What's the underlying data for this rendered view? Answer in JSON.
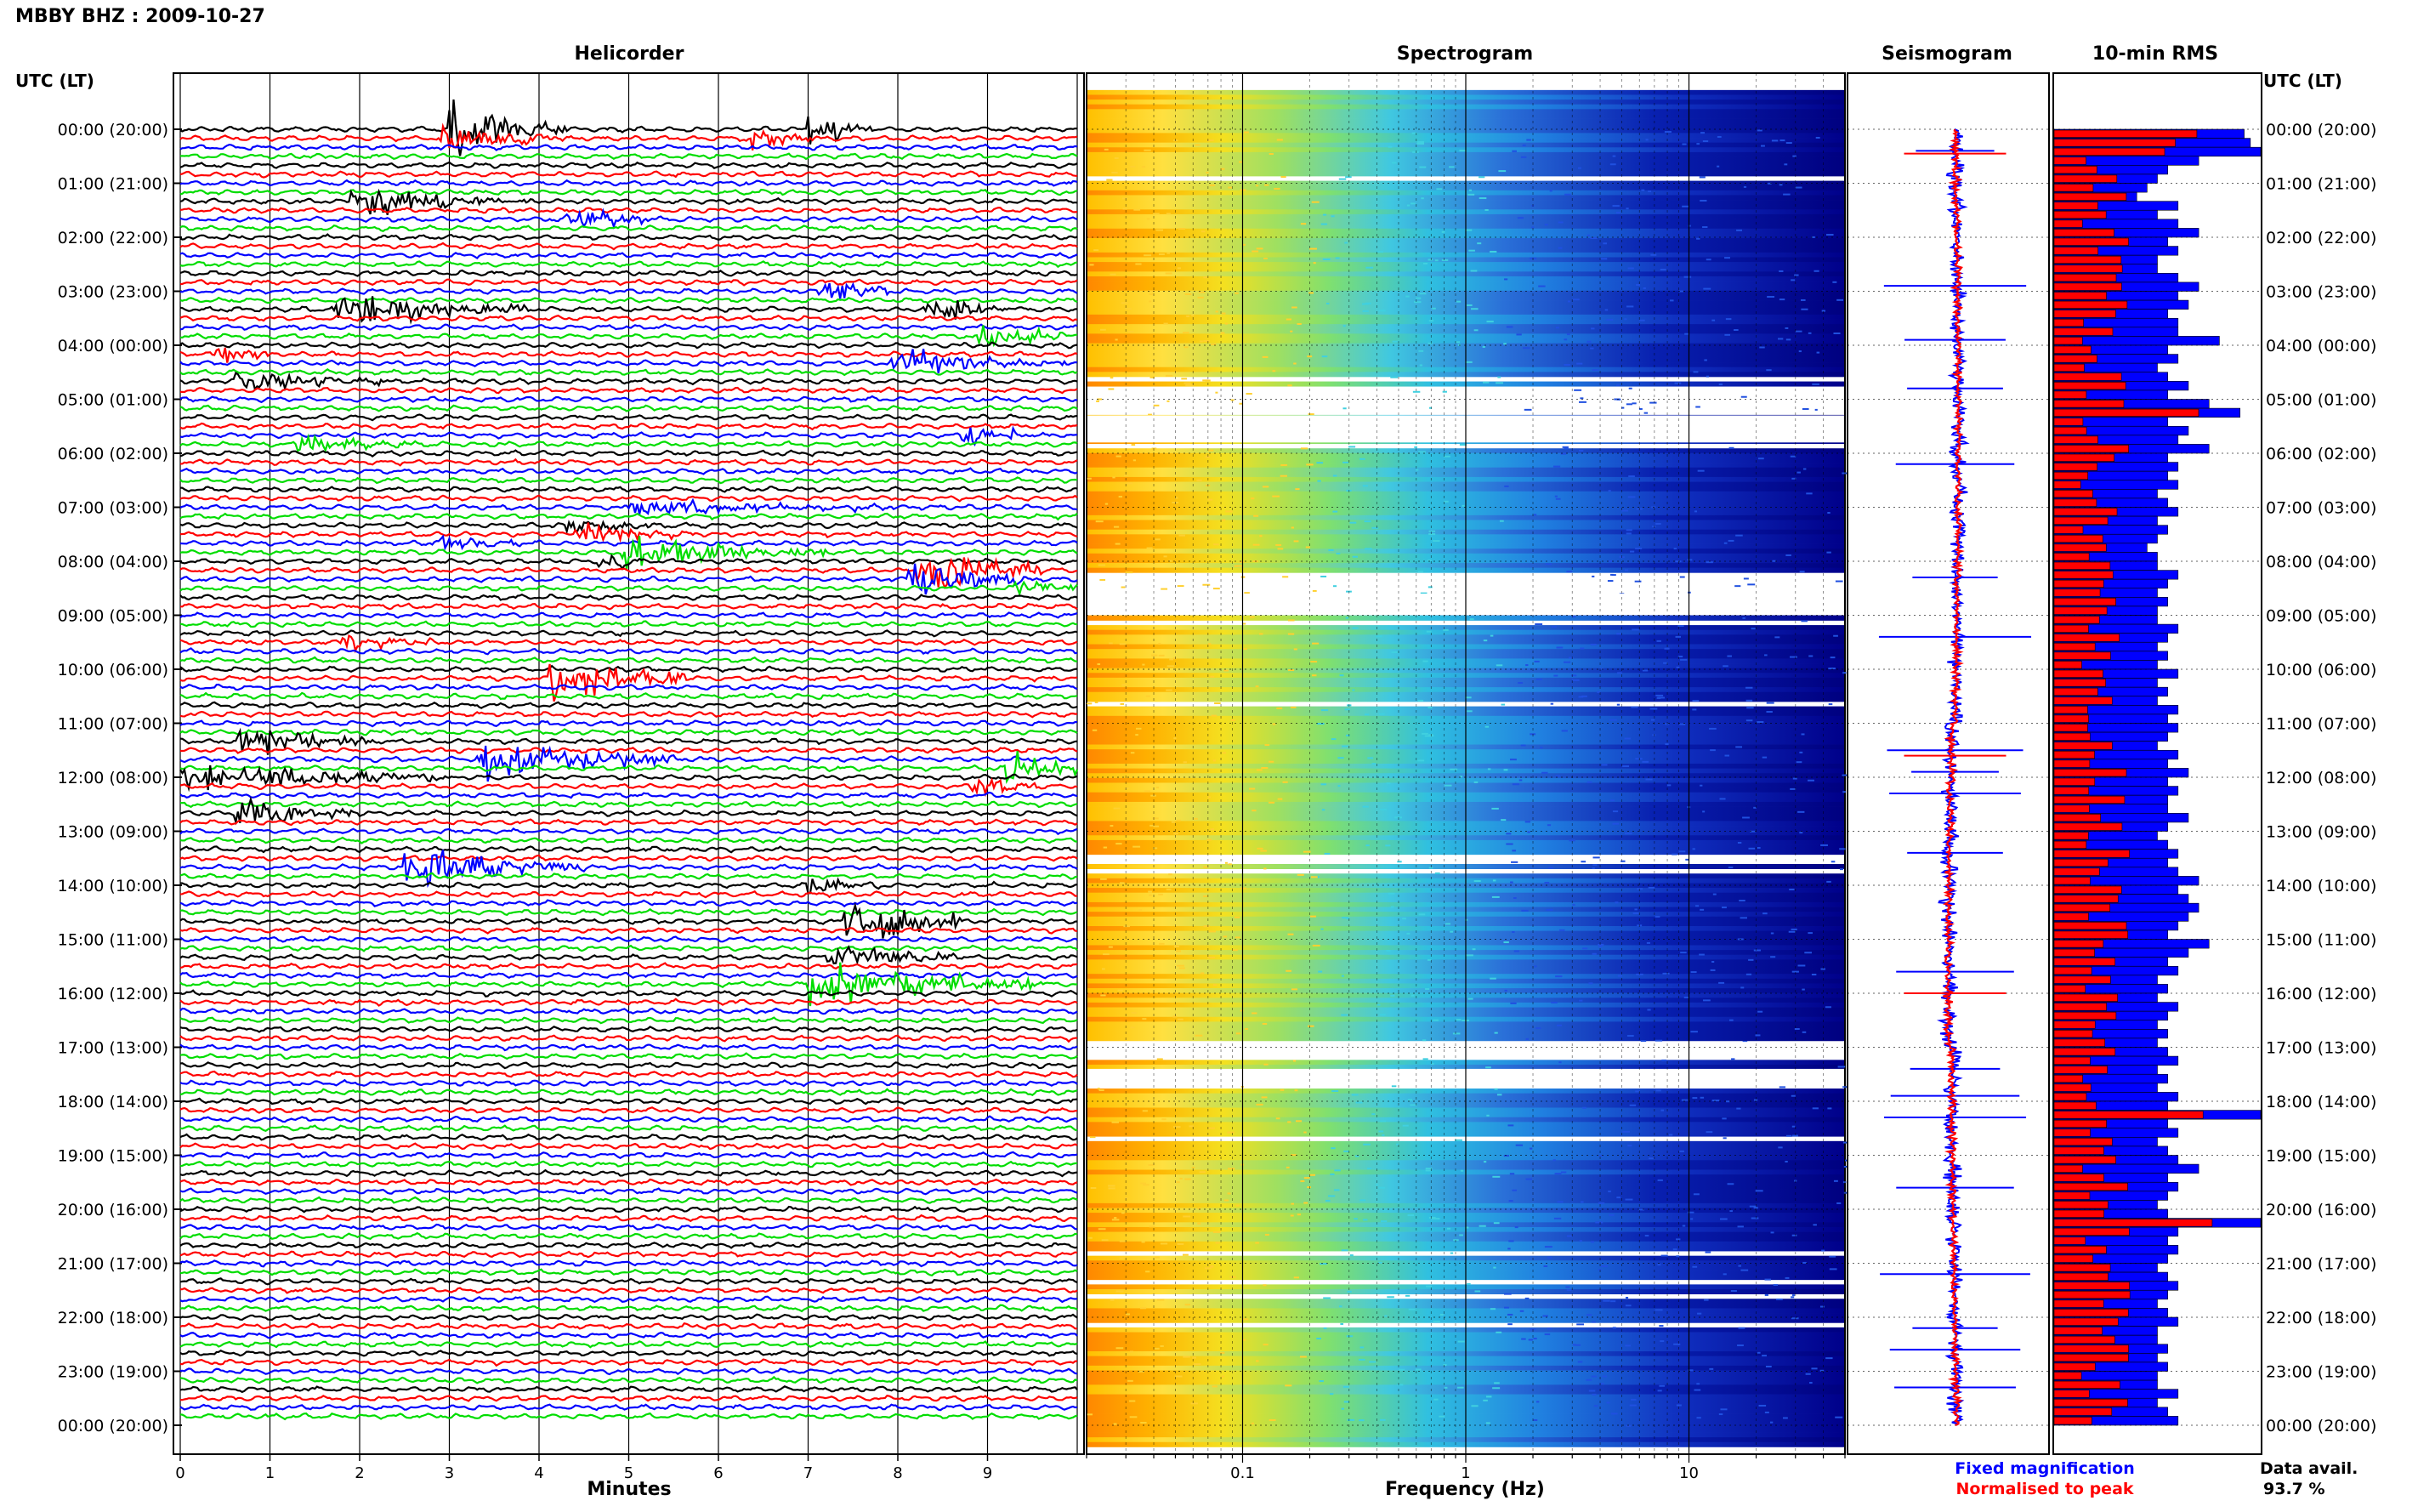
{
  "header": {
    "title": "MBBY BHZ : 2009-10-27"
  },
  "panels": {
    "helicorder": "Helicorder",
    "spectrogram": "Spectrogram",
    "seismogram": "Seismogram",
    "rms": "10-min RMS"
  },
  "axis_labels": {
    "utc_left": "UTC (LT)",
    "utc_right": "UTC (LT)",
    "minutes": "Minutes",
    "frequency": "Frequency (Hz)"
  },
  "legend": {
    "fixed": "Fixed magnification",
    "normalised": "Normalised to peak",
    "fixed_color": "#0000ff",
    "normalised_color": "#ff0000"
  },
  "availability": {
    "label": "Data avail.",
    "value": "93.7 %"
  },
  "colors": {
    "black": "#000000",
    "red": "#ff0000",
    "blue": "#0000ff",
    "green": "#00dd00"
  },
  "chart_data": [
    {
      "type": "line",
      "title": "Helicorder",
      "xlabel": "Minutes",
      "ylabel": "UTC (LT)",
      "xlim": [
        0,
        10
      ],
      "x_ticks": [
        "0",
        "1",
        "2",
        "3",
        "4",
        "5",
        "6",
        "7",
        "8",
        "9"
      ],
      "rows_per_hour": 6,
      "trace_colors": [
        "black",
        "red",
        "blue",
        "green"
      ],
      "time_labels": [
        "00:00 (20:00)",
        "01:00 (21:00)",
        "02:00 (22:00)",
        "03:00 (23:00)",
        "04:00 (00:00)",
        "05:00 (01:00)",
        "06:00 (02:00)",
        "07:00 (03:00)",
        "08:00 (04:00)",
        "09:00 (05:00)",
        "10:00 (06:00)",
        "11:00 (07:00)",
        "12:00 (08:00)",
        "13:00 (09:00)",
        "14:00 (10:00)",
        "15:00 (11:00)",
        "16:00 (12:00)",
        "17:00 (13:00)",
        "18:00 (14:00)",
        "19:00 (15:00)",
        "20:00 (16:00)",
        "21:00 (17:00)",
        "22:00 (18:00)",
        "23:00 (19:00)",
        "00:00 (20:00)"
      ],
      "events": [
        {
          "row": 0,
          "start_min": 3.0,
          "dur_min": 1.3,
          "amp": 3.5
        },
        {
          "row": 0,
          "start_min": 7.0,
          "dur_min": 0.7,
          "amp": 2.5
        },
        {
          "row": 1,
          "start_min": 6.3,
          "dur_min": 0.8,
          "amp": 1.5
        },
        {
          "row": 1,
          "start_min": 2.9,
          "dur_min": 1.5,
          "amp": 1.8
        },
        {
          "row": 8,
          "start_min": 1.9,
          "dur_min": 2.0,
          "amp": 1.8
        },
        {
          "row": 10,
          "start_min": 4.3,
          "dur_min": 1.0,
          "amp": 1.2
        },
        {
          "row": 18,
          "start_min": 7.1,
          "dur_min": 0.8,
          "amp": 1.5
        },
        {
          "row": 20,
          "start_min": 1.7,
          "dur_min": 2.2,
          "amp": 1.8
        },
        {
          "row": 20,
          "start_min": 8.3,
          "dur_min": 1.0,
          "amp": 1.5
        },
        {
          "row": 23,
          "start_min": 8.9,
          "dur_min": 1.0,
          "amp": 1.8
        },
        {
          "row": 25,
          "start_min": 0.4,
          "dur_min": 0.6,
          "amp": 1.4
        },
        {
          "row": 26,
          "start_min": 7.9,
          "dur_min": 2.0,
          "amp": 1.5
        },
        {
          "row": 28,
          "start_min": 0.6,
          "dur_min": 1.8,
          "amp": 1.2
        },
        {
          "row": 34,
          "start_min": 8.7,
          "dur_min": 1.0,
          "amp": 1.2
        },
        {
          "row": 35,
          "start_min": 1.3,
          "dur_min": 1.5,
          "amp": 1.0
        },
        {
          "row": 42,
          "start_min": 5.0,
          "dur_min": 3.0,
          "amp": 1.0
        },
        {
          "row": 44,
          "start_min": 4.3,
          "dur_min": 1.2,
          "amp": 1.0
        },
        {
          "row": 45,
          "start_min": 4.4,
          "dur_min": 1.2,
          "amp": 1.4
        },
        {
          "row": 46,
          "start_min": 2.8,
          "dur_min": 1.0,
          "amp": 1.0
        },
        {
          "row": 47,
          "start_min": 4.9,
          "dur_min": 2.3,
          "amp": 2.0
        },
        {
          "row": 48,
          "start_min": 4.6,
          "dur_min": 0.6,
          "amp": 1.6
        },
        {
          "row": 49,
          "start_min": 8.2,
          "dur_min": 1.4,
          "amp": 2.5
        },
        {
          "row": 50,
          "start_min": 8.1,
          "dur_min": 1.3,
          "amp": 2.0
        },
        {
          "row": 51,
          "start_min": 9.3,
          "dur_min": 0.7,
          "amp": 1.2
        },
        {
          "row": 57,
          "start_min": 1.8,
          "dur_min": 1.0,
          "amp": 0.9
        },
        {
          "row": 61,
          "start_min": 4.1,
          "dur_min": 1.6,
          "amp": 2.5
        },
        {
          "row": 68,
          "start_min": 0.6,
          "dur_min": 1.6,
          "amp": 1.8
        },
        {
          "row": 70,
          "start_min": 3.3,
          "dur_min": 2.2,
          "amp": 2.5
        },
        {
          "row": 71,
          "start_min": 9.2,
          "dur_min": 0.8,
          "amp": 2.5
        },
        {
          "row": 72,
          "start_min": 0.0,
          "dur_min": 3.0,
          "amp": 1.8
        },
        {
          "row": 73,
          "start_min": 8.8,
          "dur_min": 0.8,
          "amp": 1.3
        },
        {
          "row": 76,
          "start_min": 0.6,
          "dur_min": 1.4,
          "amp": 1.8
        },
        {
          "row": 82,
          "start_min": 2.5,
          "dur_min": 2.0,
          "amp": 2.5
        },
        {
          "row": 84,
          "start_min": 7.0,
          "dur_min": 0.8,
          "amp": 1.0
        },
        {
          "row": 88,
          "start_min": 7.4,
          "dur_min": 1.3,
          "amp": 3.0
        },
        {
          "row": 92,
          "start_min": 7.2,
          "dur_min": 1.5,
          "amp": 1.5
        },
        {
          "row": 95,
          "start_min": 7.0,
          "dur_min": 2.6,
          "amp": 2.5
        }
      ]
    },
    {
      "type": "heatmap",
      "title": "Spectrogram",
      "xlabel": "Frequency (Hz)",
      "scale": "log",
      "xlim": [
        0.02,
        50
      ],
      "x_ticks": [
        "0.1",
        "1",
        "10"
      ],
      "gap_hours": [
        [
          5.3,
          5.8
        ],
        [
          8.6,
          9.0
        ],
        [
          16.9,
          17.2
        ],
        [
          17.4,
          17.7
        ]
      ]
    },
    {
      "type": "line",
      "title": "Seismogram",
      "series": [
        {
          "name": "Fixed magnification",
          "color": "blue"
        },
        {
          "name": "Normalised to peak",
          "color": "red"
        }
      ],
      "spike_hours": [
        0.4,
        2.9,
        3.9,
        4.8,
        6.2,
        8.3,
        9.4,
        11.5,
        11.9,
        12.3,
        13.4,
        15.6,
        16.0,
        17.4,
        17.9,
        18.3,
        19.6,
        21.2,
        22.2,
        22.6,
        23.3
      ]
    },
    {
      "type": "bar",
      "title": "10-min RMS",
      "series": [
        {
          "name": "Fixed magnification",
          "color": "blue"
        },
        {
          "name": "Normalised to peak",
          "color": "red"
        }
      ],
      "x": "10-min interval index 0-143",
      "values_fixed_relative": [
        0.92,
        0.95,
        1.0,
        0.7,
        0.55,
        0.5,
        0.45,
        0.4,
        0.6,
        0.5,
        0.6,
        0.7,
        0.55,
        0.6,
        0.5,
        0.5,
        0.6,
        0.7,
        0.6,
        0.65,
        0.55,
        0.6,
        0.6,
        0.8,
        0.55,
        0.6,
        0.5,
        0.55,
        0.65,
        0.55,
        0.75,
        0.9,
        0.55,
        0.65,
        0.6,
        0.75,
        0.55,
        0.6,
        0.55,
        0.6,
        0.5,
        0.55,
        0.6,
        0.5,
        0.55,
        0.5,
        0.45,
        0.5,
        0.5,
        0.6,
        0.55,
        0.5,
        0.55,
        0.5,
        0.5,
        0.6,
        0.55,
        0.5,
        0.55,
        0.5,
        0.6,
        0.5,
        0.55,
        0.5,
        0.6,
        0.55,
        0.6,
        0.55,
        0.5,
        0.6,
        0.55,
        0.65,
        0.55,
        0.6,
        0.55,
        0.55,
        0.65,
        0.55,
        0.5,
        0.55,
        0.6,
        0.55,
        0.6,
        0.7,
        0.6,
        0.65,
        0.7,
        0.65,
        0.6,
        0.55,
        0.75,
        0.65,
        0.55,
        0.6,
        0.5,
        0.55,
        0.5,
        0.6,
        0.55,
        0.5,
        0.55,
        0.5,
        0.55,
        0.6,
        0.5,
        0.55,
        0.5,
        0.6,
        0.55,
        1.0,
        0.55,
        0.6,
        0.5,
        0.55,
        0.6,
        0.7,
        0.55,
        0.6,
        0.55,
        0.5,
        0.55,
        1.0,
        0.6,
        0.55,
        0.6,
        0.55,
        0.5,
        0.55,
        0.6,
        0.55,
        0.5,
        0.55,
        0.6,
        0.5,
        0.5,
        0.55,
        0.5,
        0.55,
        0.5,
        0.5,
        0.6,
        0.5,
        0.55,
        0.6
      ]
    }
  ]
}
